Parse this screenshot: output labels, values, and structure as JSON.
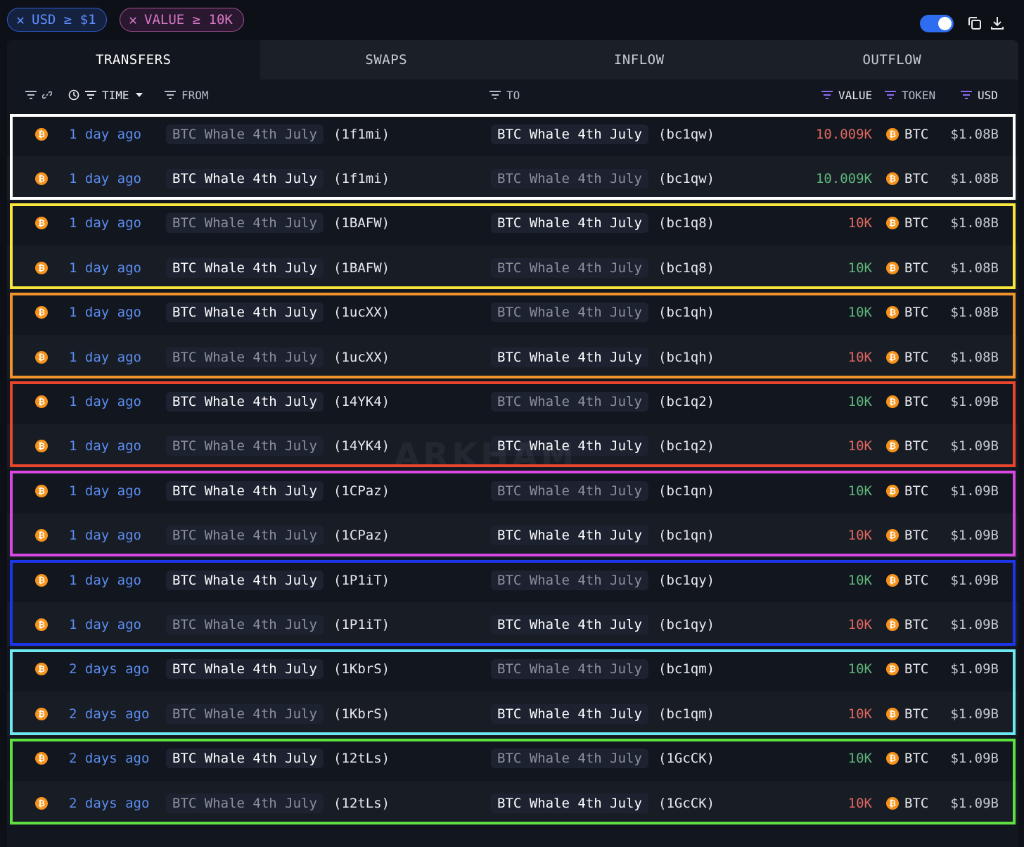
{
  "filters": [
    {
      "label": "USD ≥ $1",
      "color": "#5f8cff"
    },
    {
      "label": "VALUE ≥ 10K",
      "color": "#d777c4"
    }
  ],
  "tabs": [
    "TRANSFERS",
    "SWAPS",
    "INFLOW",
    "OUTFLOW"
  ],
  "active_tab": "TRANSFERS",
  "columns": {
    "time": "TIME",
    "from": "FROM",
    "to": "TO",
    "value": "VALUE",
    "token": "TOKEN",
    "usd": "USD"
  },
  "watermark": "ARKHAM",
  "rows": [
    {
      "time": "1 day ago",
      "from": "BTC Whale 4th July",
      "from_addr": "(1f1mi)",
      "to": "BTC Whale 4th July",
      "to_addr": "(bc1qw)",
      "value": "10.009K",
      "direction": "out",
      "token": "BTC",
      "usd": "$1.08B"
    },
    {
      "time": "1 day ago",
      "from": "BTC Whale 4th July",
      "from_addr": "(1f1mi)",
      "to": "BTC Whale 4th July",
      "to_addr": "(bc1qw)",
      "value": "10.009K",
      "direction": "in",
      "token": "BTC",
      "usd": "$1.08B"
    },
    {
      "time": "1 day ago",
      "from": "BTC Whale 4th July",
      "from_addr": "(1BAFW)",
      "to": "BTC Whale 4th July",
      "to_addr": "(bc1q8)",
      "value": "10K",
      "direction": "out",
      "token": "BTC",
      "usd": "$1.08B"
    },
    {
      "time": "1 day ago",
      "from": "BTC Whale 4th July",
      "from_addr": "(1BAFW)",
      "to": "BTC Whale 4th July",
      "to_addr": "(bc1q8)",
      "value": "10K",
      "direction": "in",
      "token": "BTC",
      "usd": "$1.08B"
    },
    {
      "time": "1 day ago",
      "from": "BTC Whale 4th July",
      "from_addr": "(1ucXX)",
      "to": "BTC Whale 4th July",
      "to_addr": "(bc1qh)",
      "value": "10K",
      "direction": "in",
      "token": "BTC",
      "usd": "$1.08B"
    },
    {
      "time": "1 day ago",
      "from": "BTC Whale 4th July",
      "from_addr": "(1ucXX)",
      "to": "BTC Whale 4th July",
      "to_addr": "(bc1qh)",
      "value": "10K",
      "direction": "out",
      "token": "BTC",
      "usd": "$1.08B"
    },
    {
      "time": "1 day ago",
      "from": "BTC Whale 4th July",
      "from_addr": "(14YK4)",
      "to": "BTC Whale 4th July",
      "to_addr": "(bc1q2)",
      "value": "10K",
      "direction": "in",
      "token": "BTC",
      "usd": "$1.09B"
    },
    {
      "time": "1 day ago",
      "from": "BTC Whale 4th July",
      "from_addr": "(14YK4)",
      "to": "BTC Whale 4th July",
      "to_addr": "(bc1q2)",
      "value": "10K",
      "direction": "out",
      "token": "BTC",
      "usd": "$1.09B"
    },
    {
      "time": "1 day ago",
      "from": "BTC Whale 4th July",
      "from_addr": "(1CPaz)",
      "to": "BTC Whale 4th July",
      "to_addr": "(bc1qn)",
      "value": "10K",
      "direction": "in",
      "token": "BTC",
      "usd": "$1.09B"
    },
    {
      "time": "1 day ago",
      "from": "BTC Whale 4th July",
      "from_addr": "(1CPaz)",
      "to": "BTC Whale 4th July",
      "to_addr": "(bc1qn)",
      "value": "10K",
      "direction": "out",
      "token": "BTC",
      "usd": "$1.09B"
    },
    {
      "time": "1 day ago",
      "from": "BTC Whale 4th July",
      "from_addr": "(1P1iT)",
      "to": "BTC Whale 4th July",
      "to_addr": "(bc1qy)",
      "value": "10K",
      "direction": "in",
      "token": "BTC",
      "usd": "$1.09B"
    },
    {
      "time": "1 day ago",
      "from": "BTC Whale 4th July",
      "from_addr": "(1P1iT)",
      "to": "BTC Whale 4th July",
      "to_addr": "(bc1qy)",
      "value": "10K",
      "direction": "out",
      "token": "BTC",
      "usd": "$1.09B"
    },
    {
      "time": "2 days ago",
      "from": "BTC Whale 4th July",
      "from_addr": "(1KbrS)",
      "to": "BTC Whale 4th July",
      "to_addr": "(bc1qm)",
      "value": "10K",
      "direction": "in",
      "token": "BTC",
      "usd": "$1.09B"
    },
    {
      "time": "2 days ago",
      "from": "BTC Whale 4th July",
      "from_addr": "(1KbrS)",
      "to": "BTC Whale 4th July",
      "to_addr": "(bc1qm)",
      "value": "10K",
      "direction": "out",
      "token": "BTC",
      "usd": "$1.09B"
    },
    {
      "time": "2 days ago",
      "from": "BTC Whale 4th July",
      "from_addr": "(12tLs)",
      "to": "BTC Whale 4th July",
      "to_addr": "(1GcCK)",
      "value": "10K",
      "direction": "in",
      "token": "BTC",
      "usd": "$1.09B"
    },
    {
      "time": "2 days ago",
      "from": "BTC Whale 4th July",
      "from_addr": "(12tLs)",
      "to": "BTC Whale 4th July",
      "to_addr": "(1GcCK)",
      "value": "10K",
      "direction": "out",
      "token": "BTC",
      "usd": "$1.09B"
    }
  ],
  "highlight_colors": [
    "#ffffff",
    "#f8e63c",
    "#f0932b",
    "#e8452c",
    "#d848e0",
    "#1c35e8",
    "#6ee8f0",
    "#5ee040"
  ],
  "value_colors": {
    "out": "#e0685f",
    "in": "#5fb67a"
  }
}
